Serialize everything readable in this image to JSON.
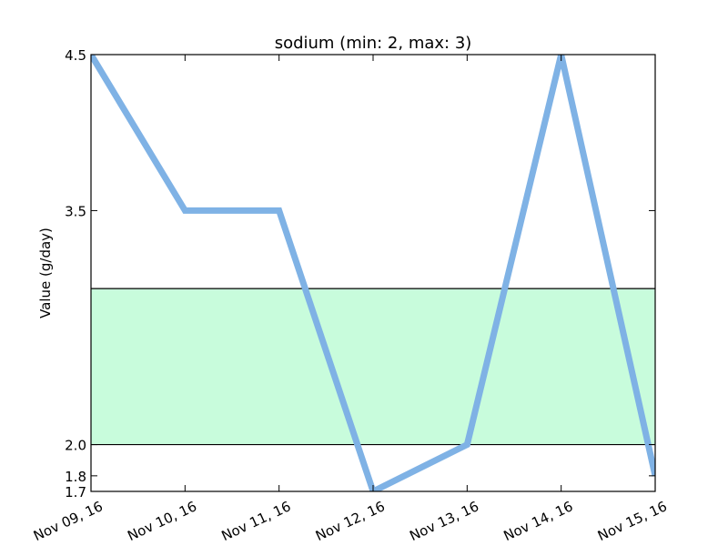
{
  "chart_data": {
    "type": "line",
    "title": "sodium (min: 2, max: 3)",
    "xlabel": "",
    "ylabel": "Value (g/day)",
    "categories": [
      "Nov 09, 16",
      "Nov 10, 16",
      "Nov 11, 16",
      "Nov 12, 16",
      "Nov 13, 16",
      "Nov 14, 16",
      "Nov 15, 16"
    ],
    "series": [
      {
        "values": [
          4.5,
          3.5,
          3.5,
          1.7,
          2.0,
          4.5,
          1.8
        ]
      }
    ],
    "ylim": [
      1.7,
      4.5
    ],
    "yticks": [
      1.7,
      1.8,
      2.0,
      3.5,
      4.5
    ],
    "ytick_labels": [
      "1.7",
      "1.8",
      "2.0",
      "3.5",
      "4.5"
    ],
    "reference_band": {
      "min": 2,
      "max": 3
    },
    "grid": false,
    "colors": {
      "line": "#7fb2e5",
      "band_fill": "#c8fcdc",
      "band_edge": "#000000",
      "axes": "#000000"
    }
  }
}
